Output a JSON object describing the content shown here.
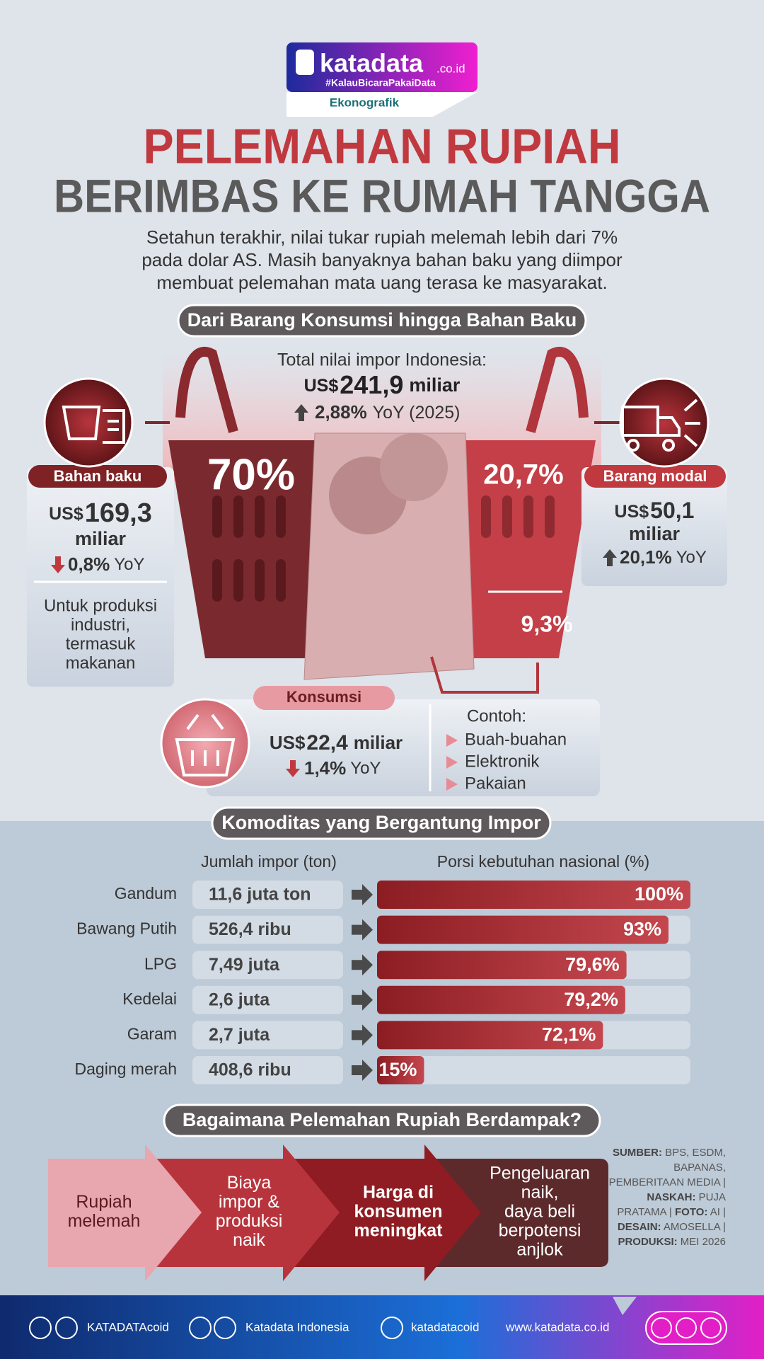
{
  "logo": {
    "brand": "katadata",
    "domain": ".co.id",
    "tagline": "#KalauBicaraPakaiData",
    "label": "Ekonografik"
  },
  "title": {
    "line1": "PELEMAHAN RUPIAH",
    "line2": "BERIMBAS KE RUMAH TANGGA"
  },
  "intro": [
    "Setahun terakhir, nilai tukar rupiah melemah lebih dari 7%",
    "pada dolar AS. Masih banyaknya bahan baku yang diimpor",
    "membuat pelemahan mata uang terasa ke masyarakat."
  ],
  "imports": {
    "heading": "Dari Barang Konsumsi hingga Bahan Baku",
    "total": {
      "label": "Total nilai impor Indonesia:",
      "currency": "US$",
      "value": "241,9",
      "unit": "miliar",
      "change": "2,88%",
      "change_suffix": "YoY (2025)"
    },
    "groups": [
      {
        "name": "Bahan baku",
        "share": "70%",
        "currency": "US$",
        "value": "169,3",
        "unit": "miliar",
        "change": "0,8%",
        "change_suffix": "YoY",
        "note": [
          "Untuk produksi",
          "industri,",
          "termasuk",
          "makanan"
        ]
      },
      {
        "name": "Barang modal",
        "share": "20,7%",
        "currency": "US$",
        "value": "50,1",
        "unit": "miliar",
        "change": "20,1%",
        "change_suffix": "YoY"
      },
      {
        "name": "Konsumsi",
        "share": "9,3%",
        "currency": "US$",
        "value": "22,4",
        "unit": "miliar",
        "change": "1,4%",
        "change_suffix": "YoY",
        "examples_label": "Contoh:",
        "examples": [
          "Buah-buahan",
          "Elektronik",
          "Pakaian"
        ]
      }
    ]
  },
  "commodities": {
    "heading": "Komoditas yang Bergantung Impor",
    "amount_header": "Jumlah impor (ton)",
    "share_header": "Porsi kebutuhan nasional (%)",
    "xlim": [
      0,
      100
    ],
    "rows": [
      {
        "name": "Gandum",
        "amount": "11,6 juta ton",
        "share": 100,
        "share_label": "100%"
      },
      {
        "name": "Bawang Putih",
        "amount": "526,4 ribu",
        "share": 93,
        "share_label": "93%"
      },
      {
        "name": "LPG",
        "amount": "7,49 juta",
        "share": 79.6,
        "share_label": "79,6%"
      },
      {
        "name": "Kedelai",
        "amount": "2,6 juta",
        "share": 79.2,
        "share_label": "79,2%"
      },
      {
        "name": "Garam",
        "amount": "2,7 juta",
        "share": 72.1,
        "share_label": "72,1%"
      },
      {
        "name": "Daging merah",
        "amount": "408,6 ribu",
        "share": 15,
        "share_label": "15%"
      }
    ]
  },
  "impact": {
    "heading": "Bagaimana Pelemahan Rupiah Berdampak?",
    "steps": [
      [
        "Rupiah",
        "melemah"
      ],
      [
        "Biaya",
        "impor &",
        "produksi",
        "naik"
      ],
      [
        "Harga di",
        "konsumen",
        "meningkat"
      ],
      [
        "Pengeluaran",
        "naik,",
        "daya beli",
        "berpotensi",
        "anjlok"
      ]
    ]
  },
  "credits": [
    {
      "label": "SUMBER:",
      "text": "BPS, ESDM, BAPANAS, PEMBERITAAN MEDIA |"
    },
    {
      "label": "NASKAH:",
      "text": "PUJA PRATAMA |"
    },
    {
      "label": "FOTO:",
      "text": "AI |"
    },
    {
      "label": "DESAIN:",
      "text": "AMOSELLA |"
    },
    {
      "label": "PRODUKSI:",
      "text": "MEI 2026"
    }
  ],
  "footer": {
    "social": "KATADATAcoid",
    "facebook": "Katadata Indonesia",
    "instagram": "katadatacoid",
    "website": "www.katadata.co.id"
  }
}
